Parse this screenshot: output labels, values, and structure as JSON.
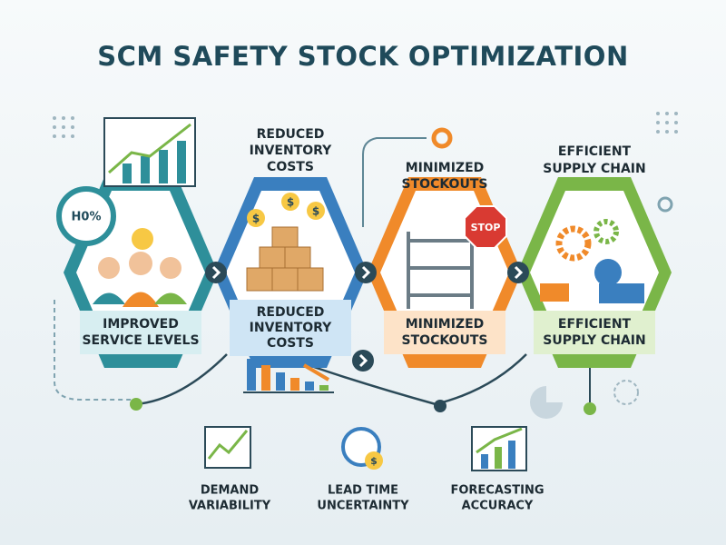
{
  "title": "SCM SAFETY STOCK OPTIMIZATION",
  "badge": "H0%",
  "stop_sign": "STOP",
  "coin_symbol": "$",
  "stages": [
    {
      "top_label": null,
      "label": [
        "IMPROVED",
        "SERVICE LEVELS"
      ]
    },
    {
      "top_label": [
        "REDUCED",
        "INVENTORY",
        "COSTS"
      ],
      "label": [
        "REDUCED",
        "INVENTORY",
        "COSTS"
      ]
    },
    {
      "top_label": [
        "MINIMIZED",
        "STOCKOUTS"
      ],
      "label": [
        "MINIMIZED",
        "STOCKOUTS"
      ]
    },
    {
      "top_label": [
        "EFFICIENT",
        "SUPPLY CHAIN"
      ],
      "label": [
        "EFFICIENT",
        "SUPPLY CHAIN"
      ]
    }
  ],
  "factors": [
    {
      "label": [
        "DEMAND",
        "VARIABILITY"
      ]
    },
    {
      "label": [
        "LEAD TIME",
        "UNCERTAINTY"
      ]
    },
    {
      "label": [
        "FORECASTING",
        "ACCURACY"
      ]
    }
  ]
}
